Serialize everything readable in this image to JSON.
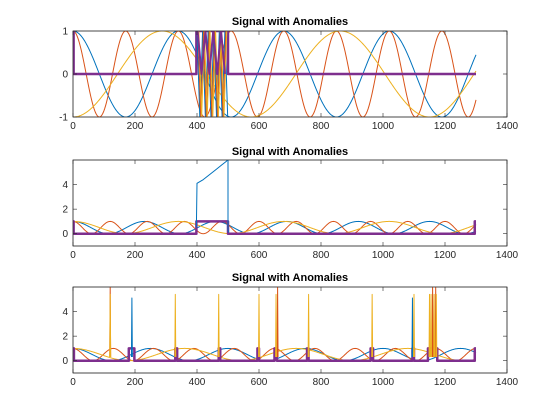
{
  "figure": {
    "background": "#ffffff"
  },
  "colors": {
    "blue": "#0072BD",
    "red": "#D95319",
    "yellow": "#EDB120",
    "purple": "#7E2F8E",
    "axis": "#262626"
  },
  "chart_data": [
    {
      "type": "line",
      "title": "Signal with Anomalies",
      "xlim": [
        0,
        1400
      ],
      "ylim": [
        -1,
        1
      ],
      "xticks": [
        "0",
        "200",
        "400",
        "600",
        "800",
        "1000",
        "1200",
        "1400"
      ],
      "yticks": [
        "-1",
        "0",
        "1"
      ],
      "grid": false,
      "series": [
        {
          "color": "blue",
          "kind": "cos",
          "period": 340,
          "phase": 0,
          "amplitude": 1,
          "offset": 0,
          "x_end": 1300
        },
        {
          "color": "red",
          "kind": "cos",
          "period": 170,
          "phase": 0,
          "amplitude": 1,
          "offset": 0,
          "x_end": 1300
        },
        {
          "color": "yellow",
          "kind": "cos",
          "period": 575,
          "phase": 3.14159,
          "amplitude": 1,
          "offset": 0,
          "x_end": 1300
        },
        {
          "color": "purple",
          "kind": "step",
          "width": 2.5,
          "points": [
            [
              0,
              1
            ],
            [
              2,
              1
            ],
            [
              2,
              0
            ],
            [
              398,
              0
            ],
            [
              398,
              1
            ],
            [
              500,
              1
            ],
            [
              500,
              0
            ],
            [
              1300,
              0
            ]
          ]
        }
      ],
      "anomaly": {
        "x_range": [
          400,
          500
        ],
        "kind": "oscillation",
        "period": 9,
        "low": -1,
        "high": 1
      }
    },
    {
      "type": "line",
      "title": "Signal with Anomalies",
      "xlim": [
        0,
        1400
      ],
      "ylim": [
        -1,
        6
      ],
      "xticks": [
        "0",
        "200",
        "400",
        "600",
        "800",
        "1000",
        "1200",
        "1400"
      ],
      "yticks": [
        "0",
        "2",
        "4"
      ],
      "grid": false,
      "series": [
        {
          "color": "blue",
          "kind": "cos2",
          "period": 230,
          "phase": 0,
          "x_end": 1300
        },
        {
          "color": "red",
          "kind": "cos2",
          "period": 120,
          "phase": 0,
          "x_end": 1300
        },
        {
          "color": "yellow",
          "kind": "cos2",
          "period": 340,
          "phase": 0,
          "x_end": 1300
        },
        {
          "color": "purple",
          "kind": "step",
          "width": 2.5,
          "points": [
            [
              0,
              1
            ],
            [
              2,
              1
            ],
            [
              2,
              0
            ],
            [
              398,
              0
            ],
            [
              398,
              1
            ],
            [
              500,
              1
            ],
            [
              500,
              0
            ],
            [
              1296,
              0
            ],
            [
              1296,
              1
            ],
            [
              1300,
              1
            ]
          ]
        },
        {
          "color": "blue",
          "kind": "points",
          "points": [
            [
              398,
              0.5
            ],
            [
              400,
              4.1
            ],
            [
              420,
              4.4
            ],
            [
              440,
              4.8
            ],
            [
              460,
              5.2
            ],
            [
              480,
              5.6
            ],
            [
              495,
              5.9
            ],
            [
              498,
              6
            ],
            [
              500,
              6
            ],
            [
              500,
              0.3
            ],
            [
              502,
              0.1
            ]
          ]
        }
      ]
    },
    {
      "type": "line",
      "title": "Signal with Anomalies",
      "xlim": [
        0,
        1400
      ],
      "ylim": [
        -1,
        6
      ],
      "xticks": [
        "0",
        "200",
        "400",
        "600",
        "800",
        "1000",
        "1200",
        "1400"
      ],
      "yticks": [
        "0",
        "2",
        "4"
      ],
      "grid": false,
      "series": [
        {
          "color": "blue",
          "kind": "cos2",
          "period": 250,
          "phase": 0,
          "x_end": 1300
        },
        {
          "color": "red",
          "kind": "cos2",
          "period": 130,
          "phase": 0,
          "x_end": 1300
        },
        {
          "color": "yellow",
          "kind": "cos2",
          "period": 360,
          "phase": 0,
          "x_end": 1300
        },
        {
          "color": "purple",
          "kind": "step",
          "width": 2.5,
          "points": [
            [
              0,
              1
            ],
            [
              3,
              1
            ],
            [
              3,
              0
            ],
            [
              180,
              0
            ],
            [
              180,
              1
            ],
            [
              198,
              1
            ],
            [
              198,
              0
            ],
            [
              330,
              0
            ],
            [
              330,
              1
            ],
            [
              336,
              1
            ],
            [
              336,
              0
            ],
            [
              470,
              0
            ],
            [
              470,
              1
            ],
            [
              475,
              1
            ],
            [
              475,
              0
            ],
            [
              595,
              0
            ],
            [
              595,
              1
            ],
            [
              600,
              1
            ],
            [
              600,
              0
            ],
            [
              650,
              0
            ],
            [
              650,
              1
            ],
            [
              658,
              1
            ],
            [
              658,
              0
            ],
            [
              755,
              0
            ],
            [
              755,
              1
            ],
            [
              760,
              1
            ],
            [
              760,
              0
            ],
            [
              960,
              0
            ],
            [
              960,
              1
            ],
            [
              968,
              1
            ],
            [
              968,
              0
            ],
            [
              1095,
              0
            ],
            [
              1095,
              1
            ],
            [
              1100,
              1
            ],
            [
              1100,
              0
            ],
            [
              1145,
              0
            ],
            [
              1145,
              1
            ],
            [
              1175,
              1
            ],
            [
              1175,
              0
            ],
            [
              1296,
              0
            ],
            [
              1296,
              1
            ],
            [
              1300,
              1
            ]
          ]
        },
        {
          "color": "red",
          "kind": "spikes",
          "x": [
            120,
            660,
            1160,
            1170
          ],
          "height": 6
        },
        {
          "color": "blue",
          "kind": "spikes",
          "x": [
            190,
            1095
          ],
          "height": 5.1
        },
        {
          "color": "yellow",
          "kind": "spikes",
          "x": [
            120,
            330,
            470,
            600,
            655,
            760,
            965,
            1100,
            1150,
            1155,
            1165,
            1172
          ],
          "height": 5.4
        }
      ]
    }
  ]
}
